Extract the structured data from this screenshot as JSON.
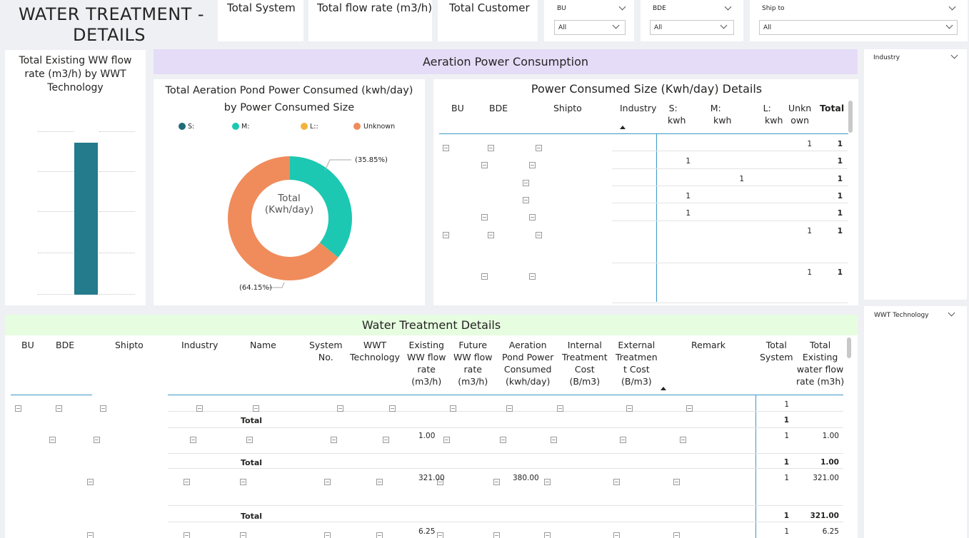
{
  "header": {
    "title_line1": "WATER TREATMENT -",
    "title_line2": "DETAILS"
  },
  "kpis": [
    {
      "label": "Total System"
    },
    {
      "label": "Total flow rate (m3/h)"
    },
    {
      "label": "Total Customer"
    }
  ],
  "slicers": {
    "bu": {
      "label": "BU",
      "value": "All"
    },
    "bde": {
      "label": "BDE",
      "value": "All"
    },
    "shipto": {
      "label": "Ship to",
      "value": "All"
    },
    "industry": {
      "label": "Industry"
    },
    "wwt": {
      "label": "WWT Technology"
    }
  },
  "flow_chart": {
    "title": "Total Existing WW flow rate (m3/h) by WWT Technology",
    "bar_color": "#237b8b"
  },
  "aeration_banner": {
    "label": "Aeration Power Consumption",
    "color": "#e5dcf8"
  },
  "donut": {
    "title_line1": "Total Aeration Pond Power Consumed (kwh/day)",
    "title_line2": "by Power Consumed Size",
    "center_line1": "Total",
    "center_line2": "(Kwh/day)",
    "label_m": "(35.85%)",
    "label_unknown": "(64.15%)"
  },
  "chart_data": {
    "type": "pie",
    "legend_position": "top",
    "categories": [
      "S:",
      "M:",
      "L::",
      "Unknown"
    ],
    "values": [
      0,
      35.85,
      0,
      64.15
    ],
    "colors": [
      "#1f6b78",
      "#1cc8b2",
      "#f2b33d",
      "#f08c5b"
    ]
  },
  "power_table": {
    "title": "Power Consumed Size (Kwh/day) Details",
    "columns": {
      "bu": "BU",
      "bde": "BDE",
      "shipto": "Shipto",
      "industry": "Industry",
      "s1": "S:",
      "s2": "kwh",
      "m1": "M:",
      "m2": "kwh",
      "l1": "L:",
      "l2": "kwh",
      "u1": "Unkn",
      "u2": "own",
      "total": "Total"
    },
    "rows": [
      {
        "s": "",
        "m": "",
        "l": "",
        "u": "1",
        "total": "1"
      },
      {
        "s": "1",
        "m": "",
        "l": "",
        "u": "",
        "total": "1"
      },
      {
        "s": "",
        "m": "",
        "l": "1",
        "u": "",
        "total": "1"
      },
      {
        "s": "1",
        "m": "",
        "l": "",
        "u": "",
        "total": "1"
      },
      {
        "s": "1",
        "m": "",
        "l": "",
        "u": "",
        "total": "1"
      },
      {
        "s": "",
        "m": "",
        "l": "",
        "u": "1",
        "total": "1"
      },
      {
        "s": "",
        "m": "",
        "l": "",
        "u": "1",
        "total": "1"
      }
    ]
  },
  "wt_banner": {
    "label": "Water Treatment Details",
    "color": "#e6fde0"
  },
  "wt_table": {
    "columns": {
      "bu": "BU",
      "bde": "BDE",
      "shipto": "Shipto",
      "industry": "Industry",
      "name": "Name",
      "sys1": "System",
      "sys2": "No.",
      "wwt1": "WWT",
      "wwt2": "Technology",
      "ex1": "Existing",
      "ex2": "WW flow",
      "ex3": "rate",
      "ex4": "(m3/h)",
      "fu1": "Future",
      "fu2": "WW flow",
      "fu3": "rate",
      "fu4": "(m3/h)",
      "ae1": "Aeration",
      "ae2": "Pond Power",
      "ae3": "Consumed",
      "ae4": "(kwh/day)",
      "in1": "Internal",
      "in2": "Treatment",
      "in3": "Cost",
      "in4": "(B/m3)",
      "et1": "External",
      "et2": "Treatmen",
      "et3": "t Cost",
      "et4": "(B/m3)",
      "remark": "Remark",
      "ts1": "Total",
      "ts2": "System",
      "te1": "Total",
      "te2": "Existing",
      "te3": "water flow",
      "te4": "rate (m3h)"
    },
    "total_label": "Total",
    "rows": [
      {
        "existing": "",
        "aeration": "",
        "tsys": "1",
        "texist": ""
      },
      {
        "tsys": "1",
        "texist": ""
      },
      {
        "existing": "1.00",
        "aeration": "",
        "tsys": "1",
        "texist": "1.00"
      },
      {
        "tsys": "1",
        "texist": "1.00"
      },
      {
        "existing": "321.00",
        "aeration": "380.00",
        "tsys": "1",
        "texist": "321.00"
      },
      {
        "tsys": "1",
        "texist": "321.00"
      },
      {
        "existing": "6.25",
        "aeration": "",
        "tsys": "1",
        "texist": "6.25"
      }
    ]
  }
}
